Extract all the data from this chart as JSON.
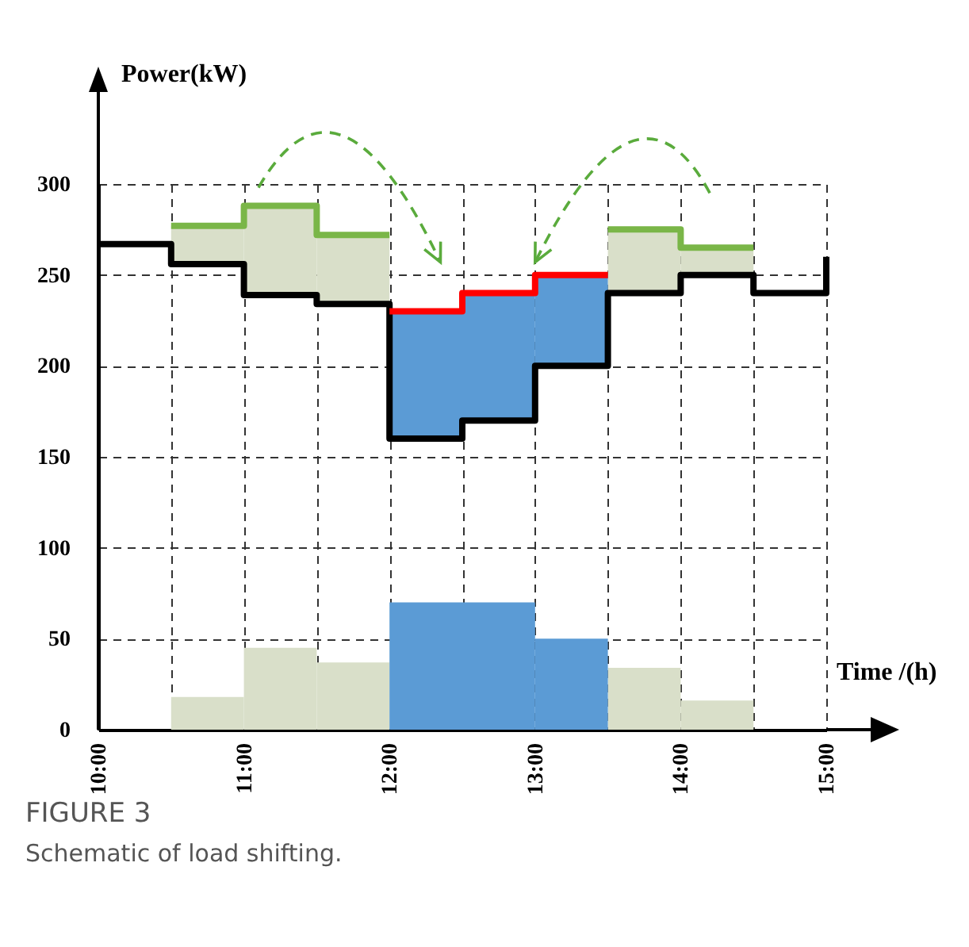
{
  "chart_data": {
    "type": "step",
    "xlabel": "Time /(h)",
    "ylabel": "Power(kW)",
    "xlim": [
      10,
      15
    ],
    "ylim": [
      0,
      300
    ],
    "xticks": [
      {
        "value": 10,
        "label": "10:00"
      },
      {
        "value": 10.5,
        "label": null
      },
      {
        "value": 11,
        "label": "11:00"
      },
      {
        "value": 11.5,
        "label": null
      },
      {
        "value": 12,
        "label": "12:00"
      },
      {
        "value": 12.5,
        "label": null
      },
      {
        "value": 13,
        "label": "13:00"
      },
      {
        "value": 13.5,
        "label": null
      },
      {
        "value": 14,
        "label": "14:00"
      },
      {
        "value": 14.5,
        "label": null
      },
      {
        "value": 15,
        "label": "15:00"
      }
    ],
    "yticks": [
      0,
      50,
      100,
      150,
      200,
      250,
      300
    ],
    "grid": true,
    "annotations": [
      "FIGURE 3",
      "Schematic of load shifting."
    ],
    "series": [
      {
        "type": "bar",
        "color": "#d9dfc9",
        "x": [
          10.75,
          11.25,
          11.75,
          13.75,
          14.25
        ],
        "base": [
          256,
          239,
          234,
          240,
          250
        ],
        "values": [
          21,
          49,
          38,
          35,
          15
        ]
      },
      {
        "type": "bar",
        "color": "#5b9bd5",
        "x": [
          12.25,
          12.75,
          13.25
        ],
        "base": [
          160,
          170,
          200
        ],
        "values": [
          70,
          70,
          50
        ]
      },
      {
        "type": "bar",
        "color": "#d9dfc9",
        "x": [
          10.75,
          11.25,
          11.75,
          13.75,
          14.25
        ],
        "values": [
          18,
          45,
          37,
          34,
          16
        ]
      },
      {
        "type": "bar",
        "color": "#5b9bd5",
        "x": [
          12.25,
          12.75,
          13.25
        ],
        "values": [
          70,
          70,
          50
        ]
      },
      {
        "color": "#000000",
        "x": [
          10,
          10.5,
          11,
          11.5,
          12,
          12.5,
          13,
          13.5,
          14,
          14.5,
          15
        ],
        "values": [
          267,
          256,
          239,
          234,
          160,
          170,
          200,
          240,
          250,
          240,
          260
        ]
      },
      {
        "color": "#7ab648",
        "x": [
          10.5,
          11,
          11.5,
          12
        ],
        "values": [
          277,
          288,
          272,
          272
        ]
      },
      {
        "color": "#7ab648",
        "x": [
          13.5,
          14,
          14.5
        ],
        "values": [
          275,
          265,
          265
        ]
      },
      {
        "color": "#ff0000",
        "x": [
          12,
          12.5,
          13,
          13.5
        ],
        "values": [
          230,
          240,
          250,
          250
        ]
      }
    ]
  }
}
